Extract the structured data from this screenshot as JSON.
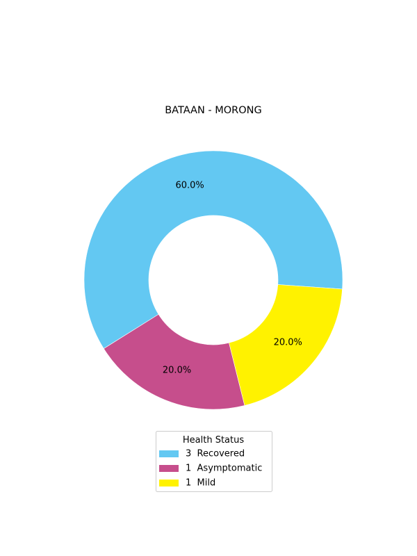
{
  "chart_data": {
    "type": "pie",
    "variant": "donut",
    "title": "BATAAN - MORONG",
    "legend_title": "Health Status",
    "legend_position": "bottom-center",
    "slices": [
      {
        "label": "Recovered",
        "value": 3,
        "percent_label": "60.0%",
        "color": "#63c8f2",
        "legend_label": "3  Recovered"
      },
      {
        "label": "Asymptomatic",
        "value": 1,
        "percent_label": "20.0%",
        "color": "#c64e8c",
        "legend_label": "1  Asymptomatic"
      },
      {
        "label": "Mild",
        "value": 1,
        "percent_label": "20.0%",
        "color": "#fff200",
        "legend_label": "1  Mild"
      }
    ]
  }
}
